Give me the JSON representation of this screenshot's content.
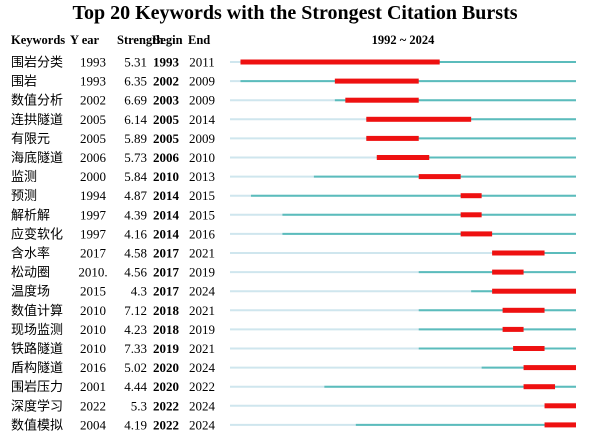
{
  "chart_data": {
    "type": "timeline",
    "title": "Top 20 Keywords with the Strongest Citation Bursts",
    "columns": [
      "Keywords",
      "Y ear",
      "Strength",
      "Begin",
      "End",
      "1992 ~ 2024"
    ],
    "range_label": "1992 ~ 2024",
    "x_range": [
      1992,
      2024
    ],
    "rows": [
      {
        "keyword": "围岩分类",
        "year": 1993,
        "strength": "5.31",
        "begin": 1993,
        "end": 2011
      },
      {
        "keyword": "围岩",
        "year": 1993,
        "strength": "6.35",
        "begin": 2002,
        "end": 2009
      },
      {
        "keyword": "数值分析",
        "year": 2002,
        "strength": "6.69",
        "begin": 2003,
        "end": 2009
      },
      {
        "keyword": "连拱隧道",
        "year": 2005,
        "strength": "6.14",
        "begin": 2005,
        "end": 2014
      },
      {
        "keyword": "有限元",
        "year": 2005,
        "strength": "5.89",
        "begin": 2005,
        "end": 2009
      },
      {
        "keyword": "海底隧道",
        "year": 2006,
        "strength": "5.73",
        "begin": 2006,
        "end": 2010
      },
      {
        "keyword": "监测",
        "year": 2000,
        "strength": "5.84",
        "begin": 2010,
        "end": 2013
      },
      {
        "keyword": "预测",
        "year": 1994,
        "strength": "4.87",
        "begin": 2014,
        "end": 2015
      },
      {
        "keyword": "解析解",
        "year": 1997,
        "strength": "4.39",
        "begin": 2014,
        "end": 2015
      },
      {
        "keyword": "应变软化",
        "year": 1997,
        "strength": "4.16",
        "begin": 2014,
        "end": 2016
      },
      {
        "keyword": "含水率",
        "year": 2017,
        "strength": "4.58",
        "begin": 2017,
        "end": 2021
      },
      {
        "keyword": "松动圈",
        "year": "2010.",
        "strength": "4.56",
        "begin": 2017,
        "end": 2019
      },
      {
        "keyword": "温度场",
        "year": 2015,
        "strength": "4.3",
        "begin": 2017,
        "end": 2024
      },
      {
        "keyword": "数值计算",
        "year": 2010,
        "strength": "7.12",
        "begin": 2018,
        "end": 2021
      },
      {
        "keyword": "现场监测",
        "year": 2010,
        "strength": "4.23",
        "begin": 2018,
        "end": 2019
      },
      {
        "keyword": "铁路隧道",
        "year": 2010,
        "strength": "7.33",
        "begin": 2019,
        "end": 2021
      },
      {
        "keyword": "盾构隧道",
        "year": 2016,
        "strength": "5.02",
        "begin": 2020,
        "end": 2024
      },
      {
        "keyword": "围岩压力",
        "year": 2001,
        "strength": "4.44",
        "begin": 2020,
        "end": 2022
      },
      {
        "keyword": "深度学习",
        "year": 2022,
        "strength": "5.3",
        "begin": 2022,
        "end": 2024
      },
      {
        "keyword": "数值模拟",
        "year": 2004,
        "strength": "4.19",
        "begin": 2022,
        "end": 2024
      }
    ],
    "colors": {
      "burst": "#ee1111",
      "active": "#5bbcbc",
      "inactive": "#cfe6ee"
    }
  }
}
